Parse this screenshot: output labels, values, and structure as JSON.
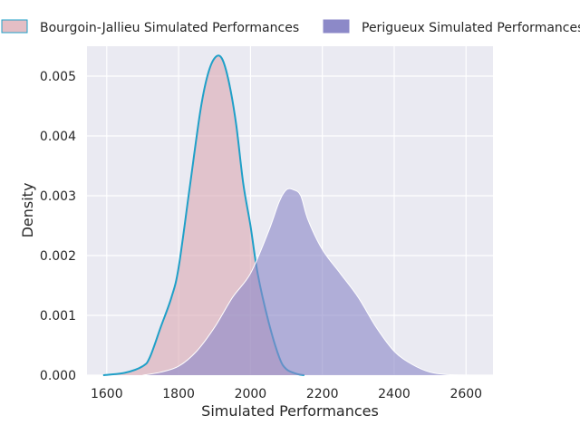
{
  "chart_data": {
    "type": "area",
    "title": "",
    "xlabel": "Simulated Performances",
    "ylabel": "Density",
    "xlim": [
      1545,
      2675
    ],
    "ylim": [
      0,
      0.0055
    ],
    "xticks": [
      1600,
      1800,
      2000,
      2200,
      2400,
      2600
    ],
    "xtick_labels": [
      "1600",
      "1800",
      "2000",
      "2200",
      "2400",
      "2600"
    ],
    "yticks": [
      0,
      0.001,
      0.002,
      0.003,
      0.004,
      0.005
    ],
    "ytick_labels": [
      "0.000",
      "0.001",
      "0.002",
      "0.003",
      "0.004",
      "0.005"
    ],
    "grid": true,
    "legend_position": "top",
    "series": [
      {
        "name": "Bourgoin-Jallieu Simulated Performances",
        "fill_color": "#d9a3ad",
        "edge_color": "#1fa0c8",
        "x": [
          1590,
          1650,
          1700,
          1720,
          1750,
          1780,
          1800,
          1830,
          1860,
          1880,
          1900,
          1920,
          1940,
          1960,
          1980,
          2000,
          2020,
          2050,
          2080,
          2100,
          2130,
          2150
        ],
        "values": [
          0.0,
          4e-05,
          0.00015,
          0.0003,
          0.0008,
          0.0013,
          0.0018,
          0.0031,
          0.0044,
          0.005,
          0.0053,
          0.0053,
          0.0049,
          0.0042,
          0.0032,
          0.0025,
          0.0017,
          0.0009,
          0.0003,
          0.0001,
          2e-05,
          0.0
        ]
      },
      {
        "name": "Perigueux Simulated Performances",
        "fill_color": "#8c89c8",
        "edge_color": "#ffffff",
        "x": [
          1700,
          1750,
          1800,
          1850,
          1900,
          1950,
          2000,
          2050,
          2080,
          2100,
          2120,
          2140,
          2160,
          2200,
          2250,
          2300,
          2350,
          2400,
          2450,
          2500,
          2550,
          2620
        ],
        "values": [
          0.0,
          5e-05,
          0.00015,
          0.0004,
          0.0008,
          0.0013,
          0.0017,
          0.0024,
          0.0029,
          0.0031,
          0.0031,
          0.003,
          0.0026,
          0.0021,
          0.0017,
          0.0013,
          0.0008,
          0.0004,
          0.00018,
          5e-05,
          1e-05,
          0.0
        ]
      }
    ]
  }
}
